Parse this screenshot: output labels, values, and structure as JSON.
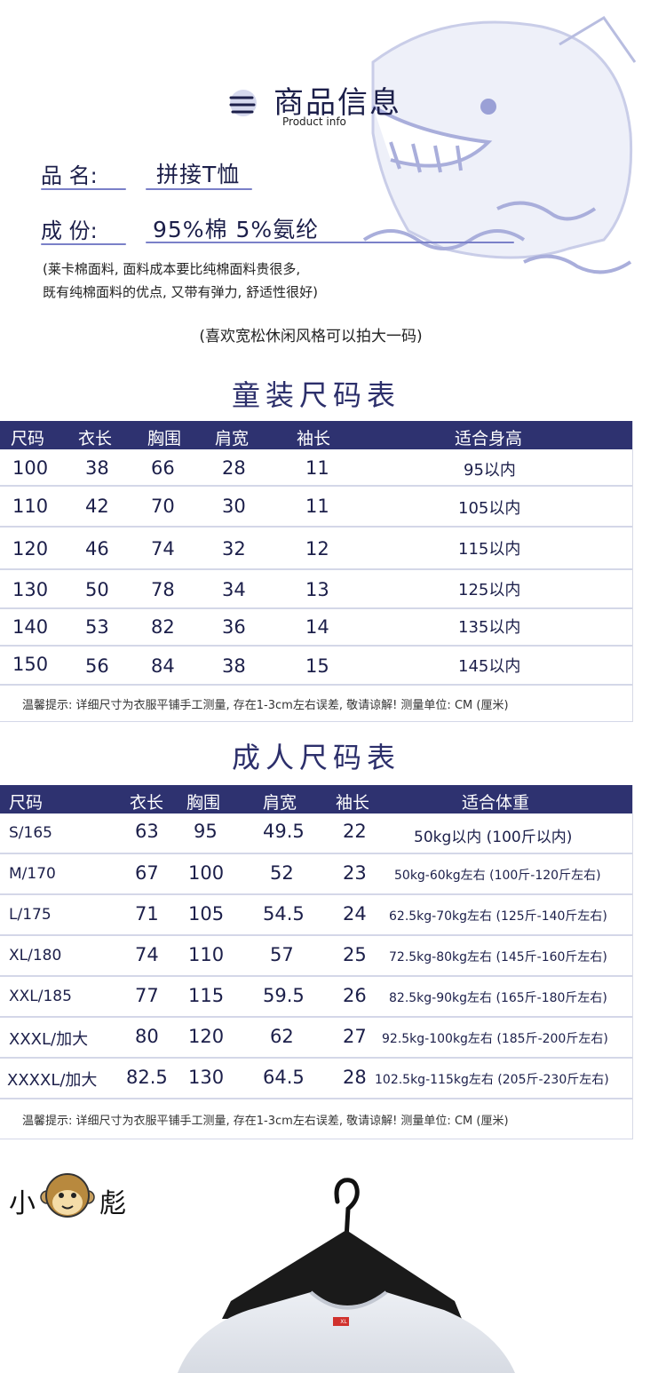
{
  "header": {
    "title_cn": "商品信息",
    "title_en": "Product info",
    "name_label": "品 名:",
    "name_value": "拼接T恤",
    "material_label": "成 份:",
    "material_value": "95%棉  5%氨纶",
    "note_line1": "(莱卡棉面料, 面料成本要比纯棉面料贵很多,",
    "note_line2": "既有纯棉面料的优点, 又带有弹力, 舒适性很好)",
    "size_tip": "(喜欢宽松休闲风格可以拍大一码)"
  },
  "kids_table": {
    "title": "童装尺码表",
    "headers": [
      "尺码",
      "衣长",
      "胸围",
      "肩宽",
      "袖长",
      "适合身高"
    ],
    "rows": [
      [
        "100",
        "38",
        "66",
        "28",
        "11",
        "95以内"
      ],
      [
        "110",
        "42",
        "70",
        "30",
        "11",
        "105以内"
      ],
      [
        "120",
        "46",
        "74",
        "32",
        "12",
        "115以内"
      ],
      [
        "130",
        "50",
        "78",
        "34",
        "13",
        "125以内"
      ],
      [
        "140",
        "53",
        "82",
        "36",
        "14",
        "135以内"
      ],
      [
        "150",
        "56",
        "84",
        "38",
        "15",
        "145以内"
      ]
    ],
    "tip": "温馨提示: 详细尺寸为衣服平铺手工测量, 存在1-3cm左右误差, 敬请谅解! 测量单位: CM (厘米)"
  },
  "adult_table": {
    "title": "成人尺码表",
    "headers": [
      "尺码",
      "衣长",
      "胸围",
      "肩宽",
      "袖长",
      "适合体重"
    ],
    "rows": [
      [
        "S/165",
        "63",
        "95",
        "49.5",
        "22",
        "50kg以内 (100斤以内)"
      ],
      [
        "M/170",
        "67",
        "100",
        "52",
        "23",
        "50kg-60kg左右 (100斤-120斤左右)"
      ],
      [
        "L/175",
        "71",
        "105",
        "54.5",
        "24",
        "62.5kg-70kg左右 (125斤-140斤左右)"
      ],
      [
        "XL/180",
        "74",
        "110",
        "57",
        "25",
        "72.5kg-80kg左右 (145斤-160斤左右)"
      ],
      [
        "XXL/185",
        "77",
        "115",
        "59.5",
        "26",
        "82.5kg-90kg左右 (165斤-180斤左右)"
      ],
      [
        "XXXL/加大",
        "80",
        "120",
        "62",
        "27",
        "92.5kg-100kg左右 (185斤-200斤左右)"
      ],
      [
        "XXXXL/加大",
        "82.5",
        "130",
        "64.5",
        "28",
        "102.5kg-115kg左右 (205斤-230斤左右)"
      ]
    ],
    "tip": "温馨提示: 详细尺寸为衣服平铺手工测量, 存在1-3cm左右误差, 敬请谅解! 测量单位: CM (厘米)"
  },
  "brand": {
    "char1": "小",
    "char2": "彪"
  },
  "product": {
    "tag_text": "XL"
  },
  "colors": {
    "header_bg": "#2e3270",
    "text": "#1c1f4a",
    "accent": "#7a80c8",
    "tag": "#d0312d"
  },
  "icons": [
    "title-circle-icon",
    "whale-decoration-icon",
    "monkey-logo-icon",
    "hanger-icon"
  ]
}
